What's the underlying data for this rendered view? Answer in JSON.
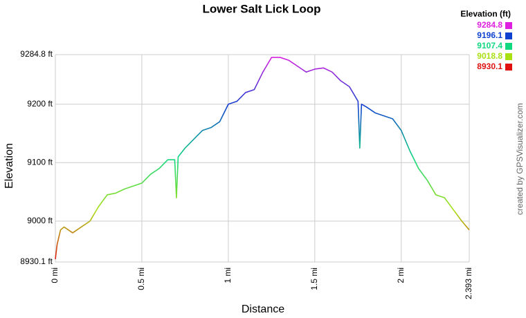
{
  "chart_data": {
    "type": "line",
    "title": "Lower Salt Lick Loop",
    "x_label": "Distance",
    "y_label": "Elevation",
    "credit": "created by GPSVisualizer.com",
    "legend_title": "Elevation (ft)",
    "color_scale": [
      {
        "value": 9284.8,
        "color": "#e020e0"
      },
      {
        "value": 9196.1,
        "color": "#1040d0"
      },
      {
        "value": 9107.4,
        "color": "#10d880"
      },
      {
        "value": 9018.8,
        "color": "#a8e010"
      },
      {
        "value": 8930.1,
        "color": "#e01010"
      }
    ],
    "x": [
      0,
      0.01,
      0.03,
      0.05,
      0.1,
      0.15,
      0.2,
      0.25,
      0.3,
      0.35,
      0.4,
      0.45,
      0.5,
      0.55,
      0.6,
      0.65,
      0.69,
      0.7,
      0.71,
      0.75,
      0.8,
      0.85,
      0.9,
      0.95,
      1.0,
      1.05,
      1.1,
      1.15,
      1.2,
      1.25,
      1.3,
      1.35,
      1.4,
      1.45,
      1.5,
      1.55,
      1.6,
      1.65,
      1.7,
      1.75,
      1.76,
      1.77,
      1.8,
      1.85,
      1.9,
      1.95,
      2.0,
      2.05,
      2.1,
      2.15,
      2.2,
      2.25,
      2.3,
      2.35,
      2.393
    ],
    "values": [
      8935,
      8960,
      8985,
      8990,
      8980,
      8990,
      9000,
      9025,
      9045,
      9048,
      9055,
      9060,
      9065,
      9080,
      9090,
      9105,
      9105,
      9040,
      9110,
      9125,
      9140,
      9155,
      9160,
      9170,
      9200,
      9205,
      9220,
      9225,
      9255,
      9280,
      9280,
      9275,
      9265,
      9255,
      9260,
      9262,
      9255,
      9240,
      9230,
      9205,
      9125,
      9200,
      9195,
      9185,
      9180,
      9175,
      9155,
      9120,
      9090,
      9070,
      9045,
      9040,
      9020,
      9000,
      8985
    ],
    "xlim": [
      0,
      2.393
    ],
    "ylim": [
      8930.1,
      9284.8
    ],
    "xticks": [
      {
        "value": 0,
        "label": "0 mi"
      },
      {
        "value": 0.5,
        "label": "0.5 mi"
      },
      {
        "value": 1,
        "label": "1 mi"
      },
      {
        "value": 1.5,
        "label": "1.5 mi"
      },
      {
        "value": 2,
        "label": "2 mi"
      },
      {
        "value": 2.393,
        "label": "2.393 mi"
      }
    ],
    "yticks": [
      {
        "value": 8930.1,
        "label": "8930.1 ft"
      },
      {
        "value": 9000,
        "label": "9000 ft"
      },
      {
        "value": 9100,
        "label": "9100 ft"
      },
      {
        "value": 9200,
        "label": "9200 ft"
      },
      {
        "value": 9284.8,
        "label": "9284.8 ft"
      }
    ],
    "grid": true
  }
}
